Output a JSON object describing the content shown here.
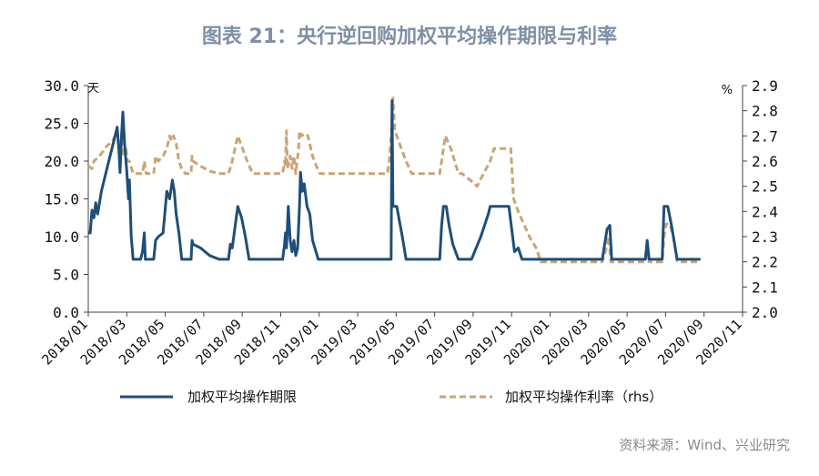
{
  "chart_data": {
    "type": "line",
    "title": "图表 21：央行逆回购加权平均操作期限与利率",
    "source": "资料来源：Wind、兴业研究",
    "y_left": {
      "unit": "天",
      "ticks": [
        "30.0",
        "25.0",
        "20.0",
        "15.0",
        "10.0",
        "5.0",
        "0.0"
      ],
      "min": 0,
      "max": 30
    },
    "y_right": {
      "unit": "%",
      "ticks": [
        "2.9",
        "2.8",
        "2.7",
        "2.6",
        "2.5",
        "2.4",
        "2.3",
        "2.2",
        "2.1",
        "2.0"
      ],
      "min": 2.0,
      "max": 2.9
    },
    "x_axis": {
      "ticks": [
        "2018/01",
        "2018/03",
        "2018/05",
        "2018/07",
        "2018/09",
        "2018/11",
        "2019/01",
        "2019/03",
        "2019/05",
        "2019/07",
        "2019/09",
        "2019/11",
        "2020/01",
        "2020/03",
        "2020/05",
        "2020/07",
        "2020/09",
        "2020/11"
      ],
      "months_total": 35
    },
    "grid": false,
    "legend_position": "bottom",
    "series": [
      {
        "name": "加权平均操作期限",
        "axis": "left",
        "color": "#1f4e79",
        "style": "solid",
        "points": [
          [
            0.0,
            10.5
          ],
          [
            0.1,
            10.5
          ],
          [
            0.2,
            13.5
          ],
          [
            0.3,
            12.5
          ],
          [
            0.4,
            14.5
          ],
          [
            0.5,
            13.0
          ],
          [
            0.7,
            16.0
          ],
          [
            1.0,
            19.0
          ],
          [
            1.3,
            22.0
          ],
          [
            1.55,
            24.5
          ],
          [
            1.65,
            21.0
          ],
          [
            1.7,
            18.5
          ],
          [
            1.78,
            23.5
          ],
          [
            1.85,
            26.5
          ],
          [
            1.95,
            22.0
          ],
          [
            2.05,
            19.0
          ],
          [
            2.15,
            15.0
          ],
          [
            2.2,
            17.5
          ],
          [
            2.3,
            10.0
          ],
          [
            2.4,
            7.0
          ],
          [
            2.6,
            7.0
          ],
          [
            2.8,
            7.0
          ],
          [
            2.9,
            8.0
          ],
          [
            3.0,
            10.5
          ],
          [
            3.05,
            7.0
          ],
          [
            3.3,
            7.0
          ],
          [
            3.5,
            7.0
          ],
          [
            3.6,
            9.5
          ],
          [
            3.75,
            10.0
          ],
          [
            4.0,
            10.5
          ],
          [
            4.2,
            16.0
          ],
          [
            4.35,
            15.0
          ],
          [
            4.5,
            17.5
          ],
          [
            4.6,
            16.0
          ],
          [
            4.7,
            13.0
          ],
          [
            4.85,
            10.5
          ],
          [
            5.0,
            7.0
          ],
          [
            5.3,
            7.0
          ],
          [
            5.5,
            7.0
          ],
          [
            5.55,
            9.5
          ],
          [
            5.6,
            9.0
          ],
          [
            6.0,
            8.5
          ],
          [
            6.5,
            7.5
          ],
          [
            7.0,
            7.0
          ],
          [
            7.5,
            7.0
          ],
          [
            7.6,
            9.0
          ],
          [
            7.7,
            8.5
          ],
          [
            8.0,
            14.0
          ],
          [
            8.2,
            12.5
          ],
          [
            8.4,
            10.0
          ],
          [
            8.6,
            7.0
          ],
          [
            9.0,
            7.0
          ],
          [
            9.5,
            7.0
          ],
          [
            10.0,
            7.0
          ],
          [
            10.4,
            7.0
          ],
          [
            10.5,
            9.0
          ],
          [
            10.55,
            10.5
          ],
          [
            10.6,
            8.5
          ],
          [
            10.7,
            14.0
          ],
          [
            10.8,
            9.5
          ],
          [
            10.9,
            8.0
          ],
          [
            11.0,
            9.5
          ],
          [
            11.1,
            7.5
          ],
          [
            11.2,
            8.5
          ],
          [
            11.3,
            14.0
          ],
          [
            11.35,
            18.5
          ],
          [
            11.45,
            16.0
          ],
          [
            11.55,
            17.0
          ],
          [
            11.7,
            14.0
          ],
          [
            11.85,
            13.0
          ],
          [
            12.0,
            9.5
          ],
          [
            12.3,
            7.0
          ],
          [
            12.5,
            7.0
          ],
          [
            13.0,
            7.0
          ],
          [
            13.5,
            7.0
          ],
          [
            14.0,
            7.0
          ],
          [
            14.5,
            7.0
          ],
          [
            15.0,
            7.0
          ],
          [
            15.5,
            7.0
          ],
          [
            16.0,
            7.0
          ],
          [
            16.2,
            7.0
          ],
          [
            16.25,
            28.0
          ],
          [
            16.3,
            14.0
          ],
          [
            16.5,
            14.0
          ],
          [
            16.8,
            10.0
          ],
          [
            17.0,
            7.0
          ],
          [
            17.5,
            7.0
          ],
          [
            18.0,
            7.0
          ],
          [
            18.5,
            7.0
          ],
          [
            18.8,
            7.0
          ],
          [
            18.9,
            11.5
          ],
          [
            19.0,
            14.0
          ],
          [
            19.15,
            14.0
          ],
          [
            19.3,
            11.5
          ],
          [
            19.5,
            9.0
          ],
          [
            19.8,
            7.0
          ],
          [
            20.0,
            7.0
          ],
          [
            20.5,
            7.0
          ],
          [
            21.0,
            10.0
          ],
          [
            21.4,
            13.0
          ],
          [
            21.5,
            14.0
          ],
          [
            22.0,
            14.0
          ],
          [
            22.5,
            14.0
          ],
          [
            22.6,
            12.0
          ],
          [
            22.8,
            8.0
          ],
          [
            23.0,
            8.5
          ],
          [
            23.2,
            7.0
          ],
          [
            23.5,
            7.0
          ],
          [
            24.0,
            7.0
          ],
          [
            25.0,
            7.0
          ],
          [
            26.0,
            7.0
          ],
          [
            27.0,
            7.0
          ],
          [
            27.5,
            7.0
          ],
          [
            27.75,
            11.0
          ],
          [
            27.9,
            11.5
          ],
          [
            28.0,
            7.0
          ],
          [
            28.5,
            7.0
          ],
          [
            29.0,
            7.0
          ],
          [
            29.5,
            7.0
          ],
          [
            29.8,
            7.0
          ],
          [
            29.9,
            9.5
          ],
          [
            30.0,
            7.0
          ],
          [
            30.5,
            7.0
          ],
          [
            30.7,
            7.0
          ],
          [
            30.8,
            14.0
          ],
          [
            31.0,
            14.0
          ],
          [
            31.2,
            11.5
          ],
          [
            31.5,
            7.0
          ],
          [
            32.0,
            7.0
          ],
          [
            32.5,
            7.0
          ],
          [
            32.75,
            7.0
          ]
        ]
      },
      {
        "name": "加权平均操作利率（rhs）",
        "axis": "right",
        "color": "#c9a574",
        "style": "dashed",
        "points": [
          [
            0.0,
            2.58
          ],
          [
            0.2,
            2.57
          ],
          [
            0.3,
            2.6
          ],
          [
            0.6,
            2.62
          ],
          [
            1.0,
            2.66
          ],
          [
            1.3,
            2.68
          ],
          [
            1.45,
            2.7
          ],
          [
            1.6,
            2.68
          ],
          [
            1.7,
            2.62
          ],
          [
            1.8,
            2.7
          ],
          [
            1.9,
            2.62
          ],
          [
            2.0,
            2.66
          ],
          [
            2.1,
            2.6
          ],
          [
            2.2,
            2.6
          ],
          [
            2.4,
            2.55
          ],
          [
            2.6,
            2.55
          ],
          [
            2.9,
            2.55
          ],
          [
            3.0,
            2.6
          ],
          [
            3.1,
            2.55
          ],
          [
            3.5,
            2.55
          ],
          [
            3.6,
            2.62
          ],
          [
            3.75,
            2.6
          ],
          [
            4.0,
            2.62
          ],
          [
            4.2,
            2.65
          ],
          [
            4.35,
            2.7
          ],
          [
            4.45,
            2.68
          ],
          [
            4.55,
            2.7
          ],
          [
            4.7,
            2.67
          ],
          [
            4.85,
            2.6
          ],
          [
            5.0,
            2.57
          ],
          [
            5.2,
            2.55
          ],
          [
            5.5,
            2.55
          ],
          [
            5.55,
            2.62
          ],
          [
            5.6,
            2.6
          ],
          [
            6.0,
            2.58
          ],
          [
            6.5,
            2.56
          ],
          [
            7.0,
            2.55
          ],
          [
            7.5,
            2.55
          ],
          [
            7.7,
            2.6
          ],
          [
            8.0,
            2.7
          ],
          [
            8.2,
            2.66
          ],
          [
            8.5,
            2.6
          ],
          [
            8.8,
            2.55
          ],
          [
            9.0,
            2.55
          ],
          [
            9.5,
            2.55
          ],
          [
            10.0,
            2.55
          ],
          [
            10.4,
            2.55
          ],
          [
            10.5,
            2.6
          ],
          [
            10.55,
            2.58
          ],
          [
            10.6,
            2.72
          ],
          [
            10.65,
            2.57
          ],
          [
            10.8,
            2.62
          ],
          [
            10.9,
            2.57
          ],
          [
            11.0,
            2.62
          ],
          [
            11.1,
            2.55
          ],
          [
            11.25,
            2.65
          ],
          [
            11.3,
            2.72
          ],
          [
            11.4,
            2.7
          ],
          [
            11.6,
            2.71
          ],
          [
            11.75,
            2.7
          ],
          [
            12.0,
            2.62
          ],
          [
            12.2,
            2.58
          ],
          [
            12.4,
            2.55
          ],
          [
            12.6,
            2.55
          ],
          [
            13.0,
            2.55
          ],
          [
            14.0,
            2.55
          ],
          [
            15.0,
            2.55
          ],
          [
            16.0,
            2.55
          ],
          [
            16.1,
            2.6
          ],
          [
            16.2,
            2.7
          ],
          [
            16.3,
            2.85
          ],
          [
            16.4,
            2.72
          ],
          [
            16.6,
            2.68
          ],
          [
            17.0,
            2.6
          ],
          [
            17.3,
            2.55
          ],
          [
            17.5,
            2.55
          ],
          [
            18.0,
            2.55
          ],
          [
            18.5,
            2.55
          ],
          [
            18.8,
            2.55
          ],
          [
            18.9,
            2.6
          ],
          [
            19.1,
            2.7
          ],
          [
            19.4,
            2.65
          ],
          [
            19.8,
            2.55
          ],
          [
            20.0,
            2.55
          ],
          [
            20.5,
            2.52
          ],
          [
            20.8,
            2.5
          ],
          [
            21.0,
            2.53
          ],
          [
            21.5,
            2.6
          ],
          [
            21.7,
            2.65
          ],
          [
            22.0,
            2.65
          ],
          [
            22.5,
            2.65
          ],
          [
            22.6,
            2.65
          ],
          [
            22.75,
            2.45
          ],
          [
            23.0,
            2.4
          ],
          [
            23.3,
            2.35
          ],
          [
            23.6,
            2.3
          ],
          [
            24.0,
            2.25
          ],
          [
            24.2,
            2.2
          ],
          [
            25.0,
            2.2
          ],
          [
            26.0,
            2.2
          ],
          [
            27.0,
            2.2
          ],
          [
            27.5,
            2.2
          ],
          [
            27.7,
            2.25
          ],
          [
            27.85,
            2.3
          ],
          [
            27.95,
            2.2
          ],
          [
            28.5,
            2.2
          ],
          [
            29.0,
            2.2
          ],
          [
            29.5,
            2.2
          ],
          [
            29.8,
            2.2
          ],
          [
            29.9,
            2.25
          ],
          [
            30.0,
            2.2
          ],
          [
            30.5,
            2.2
          ],
          [
            30.7,
            2.2
          ],
          [
            30.8,
            2.3
          ],
          [
            30.9,
            2.35
          ],
          [
            31.1,
            2.35
          ],
          [
            31.3,
            2.3
          ],
          [
            31.5,
            2.2
          ],
          [
            32.0,
            2.2
          ],
          [
            32.5,
            2.2
          ],
          [
            32.75,
            2.2
          ]
        ]
      }
    ]
  }
}
